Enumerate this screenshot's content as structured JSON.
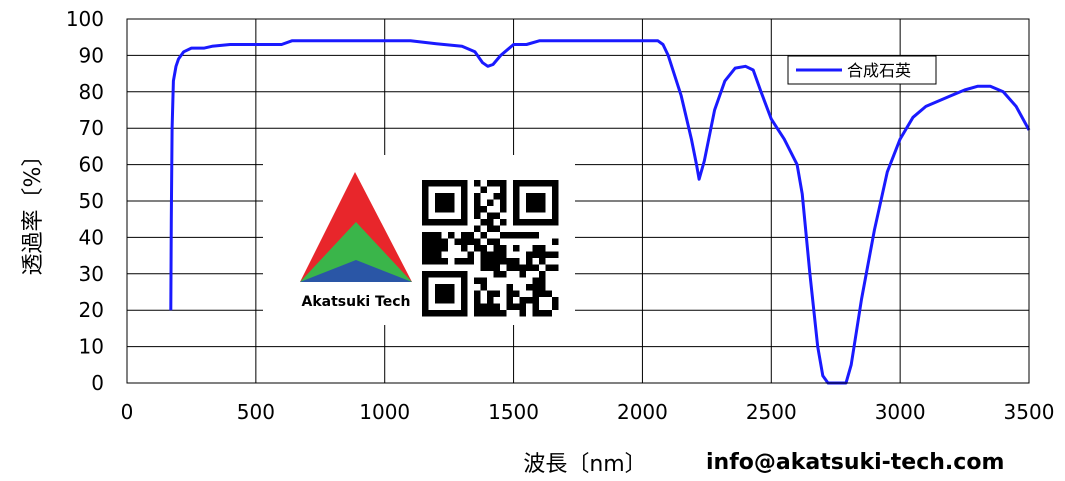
{
  "chart_data": {
    "type": "line",
    "xlabel": "波長〔nm〕",
    "ylabel": "透過率〔%〕",
    "xlim": [
      0,
      3500
    ],
    "ylim": [
      0,
      100
    ],
    "x_ticks": [
      0,
      500,
      1000,
      1500,
      2000,
      2500,
      3000,
      3500
    ],
    "y_ticks": [
      0,
      10,
      20,
      30,
      40,
      50,
      60,
      70,
      80,
      90,
      100
    ],
    "grid": true,
    "legend_position": "top-right",
    "series": [
      {
        "name": "合成石英",
        "color": "#1a1aff",
        "points": [
          [
            170,
            20
          ],
          [
            172,
            45
          ],
          [
            175,
            70
          ],
          [
            180,
            83
          ],
          [
            190,
            87
          ],
          [
            200,
            89
          ],
          [
            220,
            91
          ],
          [
            250,
            92
          ],
          [
            300,
            92
          ],
          [
            330,
            92.5
          ],
          [
            400,
            93
          ],
          [
            500,
            93
          ],
          [
            600,
            93
          ],
          [
            640,
            94
          ],
          [
            800,
            94
          ],
          [
            1000,
            94
          ],
          [
            1100,
            94
          ],
          [
            1200,
            93.2
          ],
          [
            1300,
            92.5
          ],
          [
            1350,
            91
          ],
          [
            1380,
            88
          ],
          [
            1400,
            87
          ],
          [
            1420,
            87.5
          ],
          [
            1450,
            90
          ],
          [
            1500,
            93
          ],
          [
            1550,
            93
          ],
          [
            1600,
            94
          ],
          [
            1800,
            94
          ],
          [
            2000,
            94
          ],
          [
            2060,
            94
          ],
          [
            2080,
            93
          ],
          [
            2100,
            90
          ],
          [
            2150,
            79
          ],
          [
            2190,
            67
          ],
          [
            2210,
            60
          ],
          [
            2220,
            56
          ],
          [
            2240,
            61
          ],
          [
            2280,
            75
          ],
          [
            2320,
            83
          ],
          [
            2360,
            86.5
          ],
          [
            2400,
            87
          ],
          [
            2430,
            86
          ],
          [
            2460,
            80
          ],
          [
            2500,
            72.5
          ],
          [
            2550,
            67
          ],
          [
            2600,
            60
          ],
          [
            2620,
            52
          ],
          [
            2650,
            30
          ],
          [
            2680,
            10
          ],
          [
            2700,
            2
          ],
          [
            2720,
            0
          ],
          [
            2790,
            0
          ],
          [
            2810,
            5
          ],
          [
            2850,
            23
          ],
          [
            2900,
            42
          ],
          [
            2950,
            58
          ],
          [
            3000,
            67
          ],
          [
            3050,
            73
          ],
          [
            3100,
            76
          ],
          [
            3150,
            77.5
          ],
          [
            3200,
            79
          ],
          [
            3250,
            80.5
          ],
          [
            3300,
            81.5
          ],
          [
            3350,
            81.5
          ],
          [
            3400,
            80
          ],
          [
            3450,
            76
          ],
          [
            3500,
            69.5
          ]
        ]
      }
    ]
  },
  "logo": {
    "name": "Akatsuki Tech",
    "colors": [
      "#e8262b",
      "#3ab54a",
      "#2a56a6"
    ]
  },
  "footer": {
    "email": "info@akatsuki-tech.com"
  }
}
